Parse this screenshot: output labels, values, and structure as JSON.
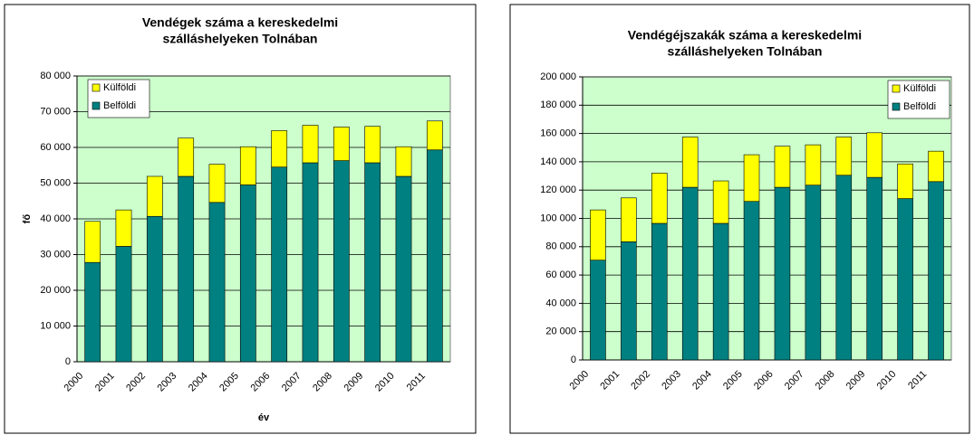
{
  "chart_data": [
    {
      "type": "bar",
      "stacked": true,
      "title": "Vendégek száma a kereskedelmi szálláshelyeken Tolnában",
      "title_lines": [
        "Vendégek száma a kereskedelmi",
        "szálláshelyeken Tolnában"
      ],
      "y_label": "fő",
      "x_label": "év",
      "categories": [
        "2000",
        "2001",
        "2002",
        "2003",
        "2004",
        "2005",
        "2006",
        "2007",
        "2008",
        "2009",
        "2010",
        "2011"
      ],
      "series": [
        {
          "name": "Belföldi",
          "color": "#008080",
          "values": [
            27800,
            32300,
            40700,
            51900,
            44600,
            49500,
            54500,
            55700,
            56300,
            55700,
            51900,
            59300
          ]
        },
        {
          "name": "Külföldi",
          "color": "#ffff00",
          "values": [
            11500,
            10200,
            11200,
            10700,
            10700,
            10700,
            10200,
            10500,
            9400,
            10200,
            8300,
            8100
          ]
        }
      ],
      "ylim": [
        0,
        80000
      ],
      "yticks": [
        0,
        {
          "value": 10000,
          "label": "10 000"
        },
        {
          "value": 20000,
          "label": "20 000"
        },
        {
          "value": 30000,
          "label": "30 000"
        },
        {
          "value": 40000,
          "label": "40 000"
        },
        {
          "value": 50000,
          "label": "50 000"
        },
        {
          "value": 60000,
          "label": "60 000"
        },
        {
          "value": 70000,
          "label": "70 000"
        },
        {
          "value": 80000,
          "label": "80 000"
        }
      ],
      "grid": true,
      "legend": "top-left",
      "background": "#ccffcc"
    },
    {
      "type": "bar",
      "stacked": true,
      "title": "Vendégéjszakák száma a kereskedelmi szálláshelyeken Tolnában",
      "title_lines": [
        "Vendégéjszakák száma a kereskedelmi",
        "szálláshelyeken Tolnában"
      ],
      "categories": [
        "2000",
        "2001",
        "2002",
        "2003",
        "2004",
        "2005",
        "2006",
        "2007",
        "2008",
        "2009",
        "2010",
        "2011"
      ],
      "series": [
        {
          "name": "Belföldi",
          "color": "#008080",
          "values": [
            70500,
            83500,
            96500,
            122000,
            96500,
            112000,
            122000,
            123500,
            130500,
            129000,
            114000,
            126000
          ]
        },
        {
          "name": "Külföldi",
          "color": "#ffff00",
          "values": [
            35500,
            31000,
            35500,
            35500,
            30000,
            33000,
            29000,
            28500,
            27000,
            31500,
            24500,
            21500
          ]
        }
      ],
      "ylim": [
        0,
        200000
      ],
      "yticks": [
        0,
        {
          "value": 20000,
          "label": "20 000"
        },
        {
          "value": 40000,
          "label": "40 000"
        },
        {
          "value": 60000,
          "label": "60 000"
        },
        {
          "value": 80000,
          "label": "80 000"
        },
        {
          "value": 100000,
          "label": "100 000"
        },
        {
          "value": 120000,
          "label": "120 000"
        },
        {
          "value": 140000,
          "label": "140 000"
        },
        {
          "value": 160000,
          "label": "160 000"
        },
        {
          "value": 180000,
          "label": "180 000"
        },
        {
          "value": 200000,
          "label": "200 000"
        }
      ],
      "grid": true,
      "legend": "top-right",
      "background": "#ccffcc"
    }
  ]
}
